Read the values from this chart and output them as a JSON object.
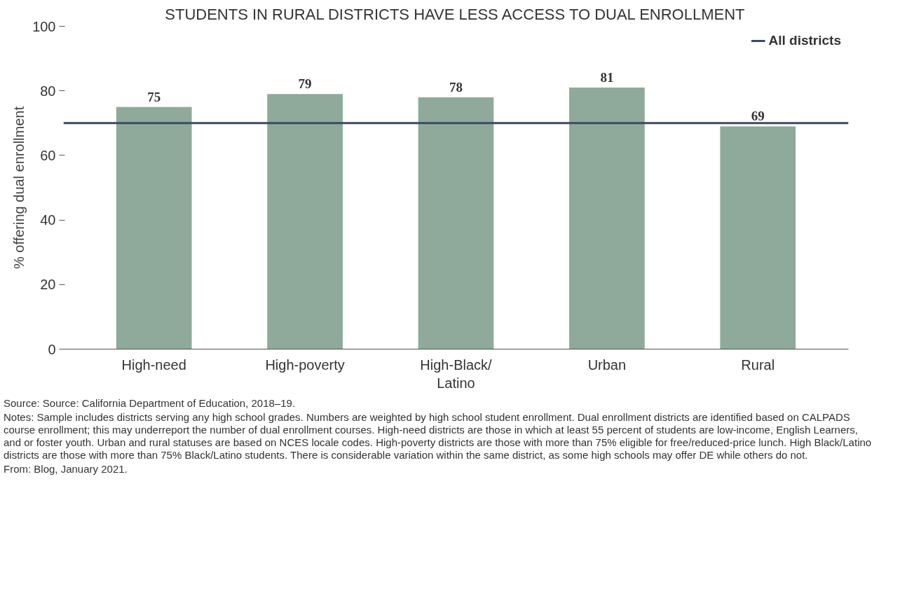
{
  "chart_data": {
    "type": "bar",
    "title": "STUDENTS IN RURAL DISTRICTS HAVE LESS ACCESS TO DUAL ENROLLMENT",
    "ylabel": "% offering dual enrollment",
    "categories": [
      "High-need",
      "High-poverty",
      "High-Black/Latino",
      "Urban",
      "Rural"
    ],
    "values": [
      75,
      79,
      78,
      81,
      69
    ],
    "color": "#8fa99a",
    "ylim": [
      0,
      100
    ],
    "yticks": [
      0,
      20,
      40,
      60,
      80,
      100
    ],
    "data_labels": true,
    "grid": false,
    "legend": "top right",
    "ref_lines": [
      {
        "axis": "y",
        "value": 70,
        "label": "All districts",
        "color": "#3d4a66"
      }
    ],
    "annotations": [
      "Source: Source: California Department of Education, 2018–19.",
      "Notes: Sample includes districts serving any high school grades. Numbers are weighted by high school student enrollment. Dual enrollment districts are identified based on CALPADS course enrollment; this may underreport the number of dual enrollment courses. High-need districts are those in which at least 55 percent of students are low-income, English Learners, and or foster youth. Urban and rural statuses are based on NCES locale codes. High-poverty districts are those with more than 75% eligible for free/reduced-price lunch. High Black/Latino districts are those with more than 75% Black/Latino students. There is considerable variation within the same district, as some high schools may offer DE while others do not.",
      "From: Blog, January 2021."
    ]
  }
}
